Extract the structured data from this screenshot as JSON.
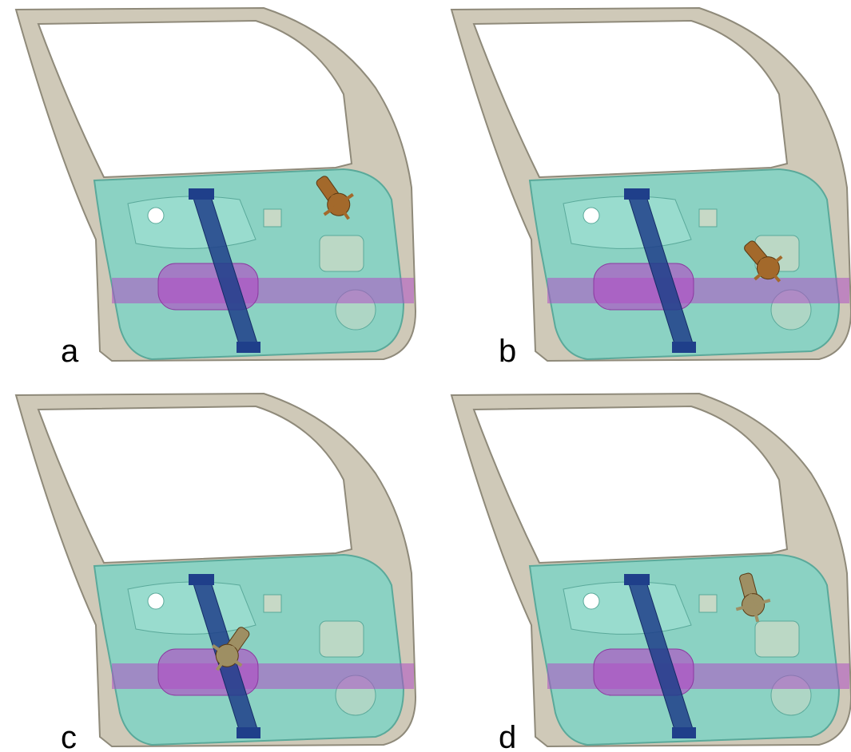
{
  "figure": {
    "panels": [
      {
        "label": "a",
        "motor_variant": "upper-right"
      },
      {
        "label": "b",
        "motor_variant": "middle-right"
      },
      {
        "label": "c",
        "motor_variant": "center-on-rail"
      },
      {
        "label": "d",
        "motor_variant": "top-center"
      }
    ],
    "colors": {
      "frame": "#cfc9b8",
      "frame_edge": "#8f8a7a",
      "inner_panel": "#7fd3c4",
      "rail": "#1f3f8a",
      "beam": "#b04fc4",
      "motor": "#a3692b",
      "motor_pale": "#9e8f63"
    }
  }
}
